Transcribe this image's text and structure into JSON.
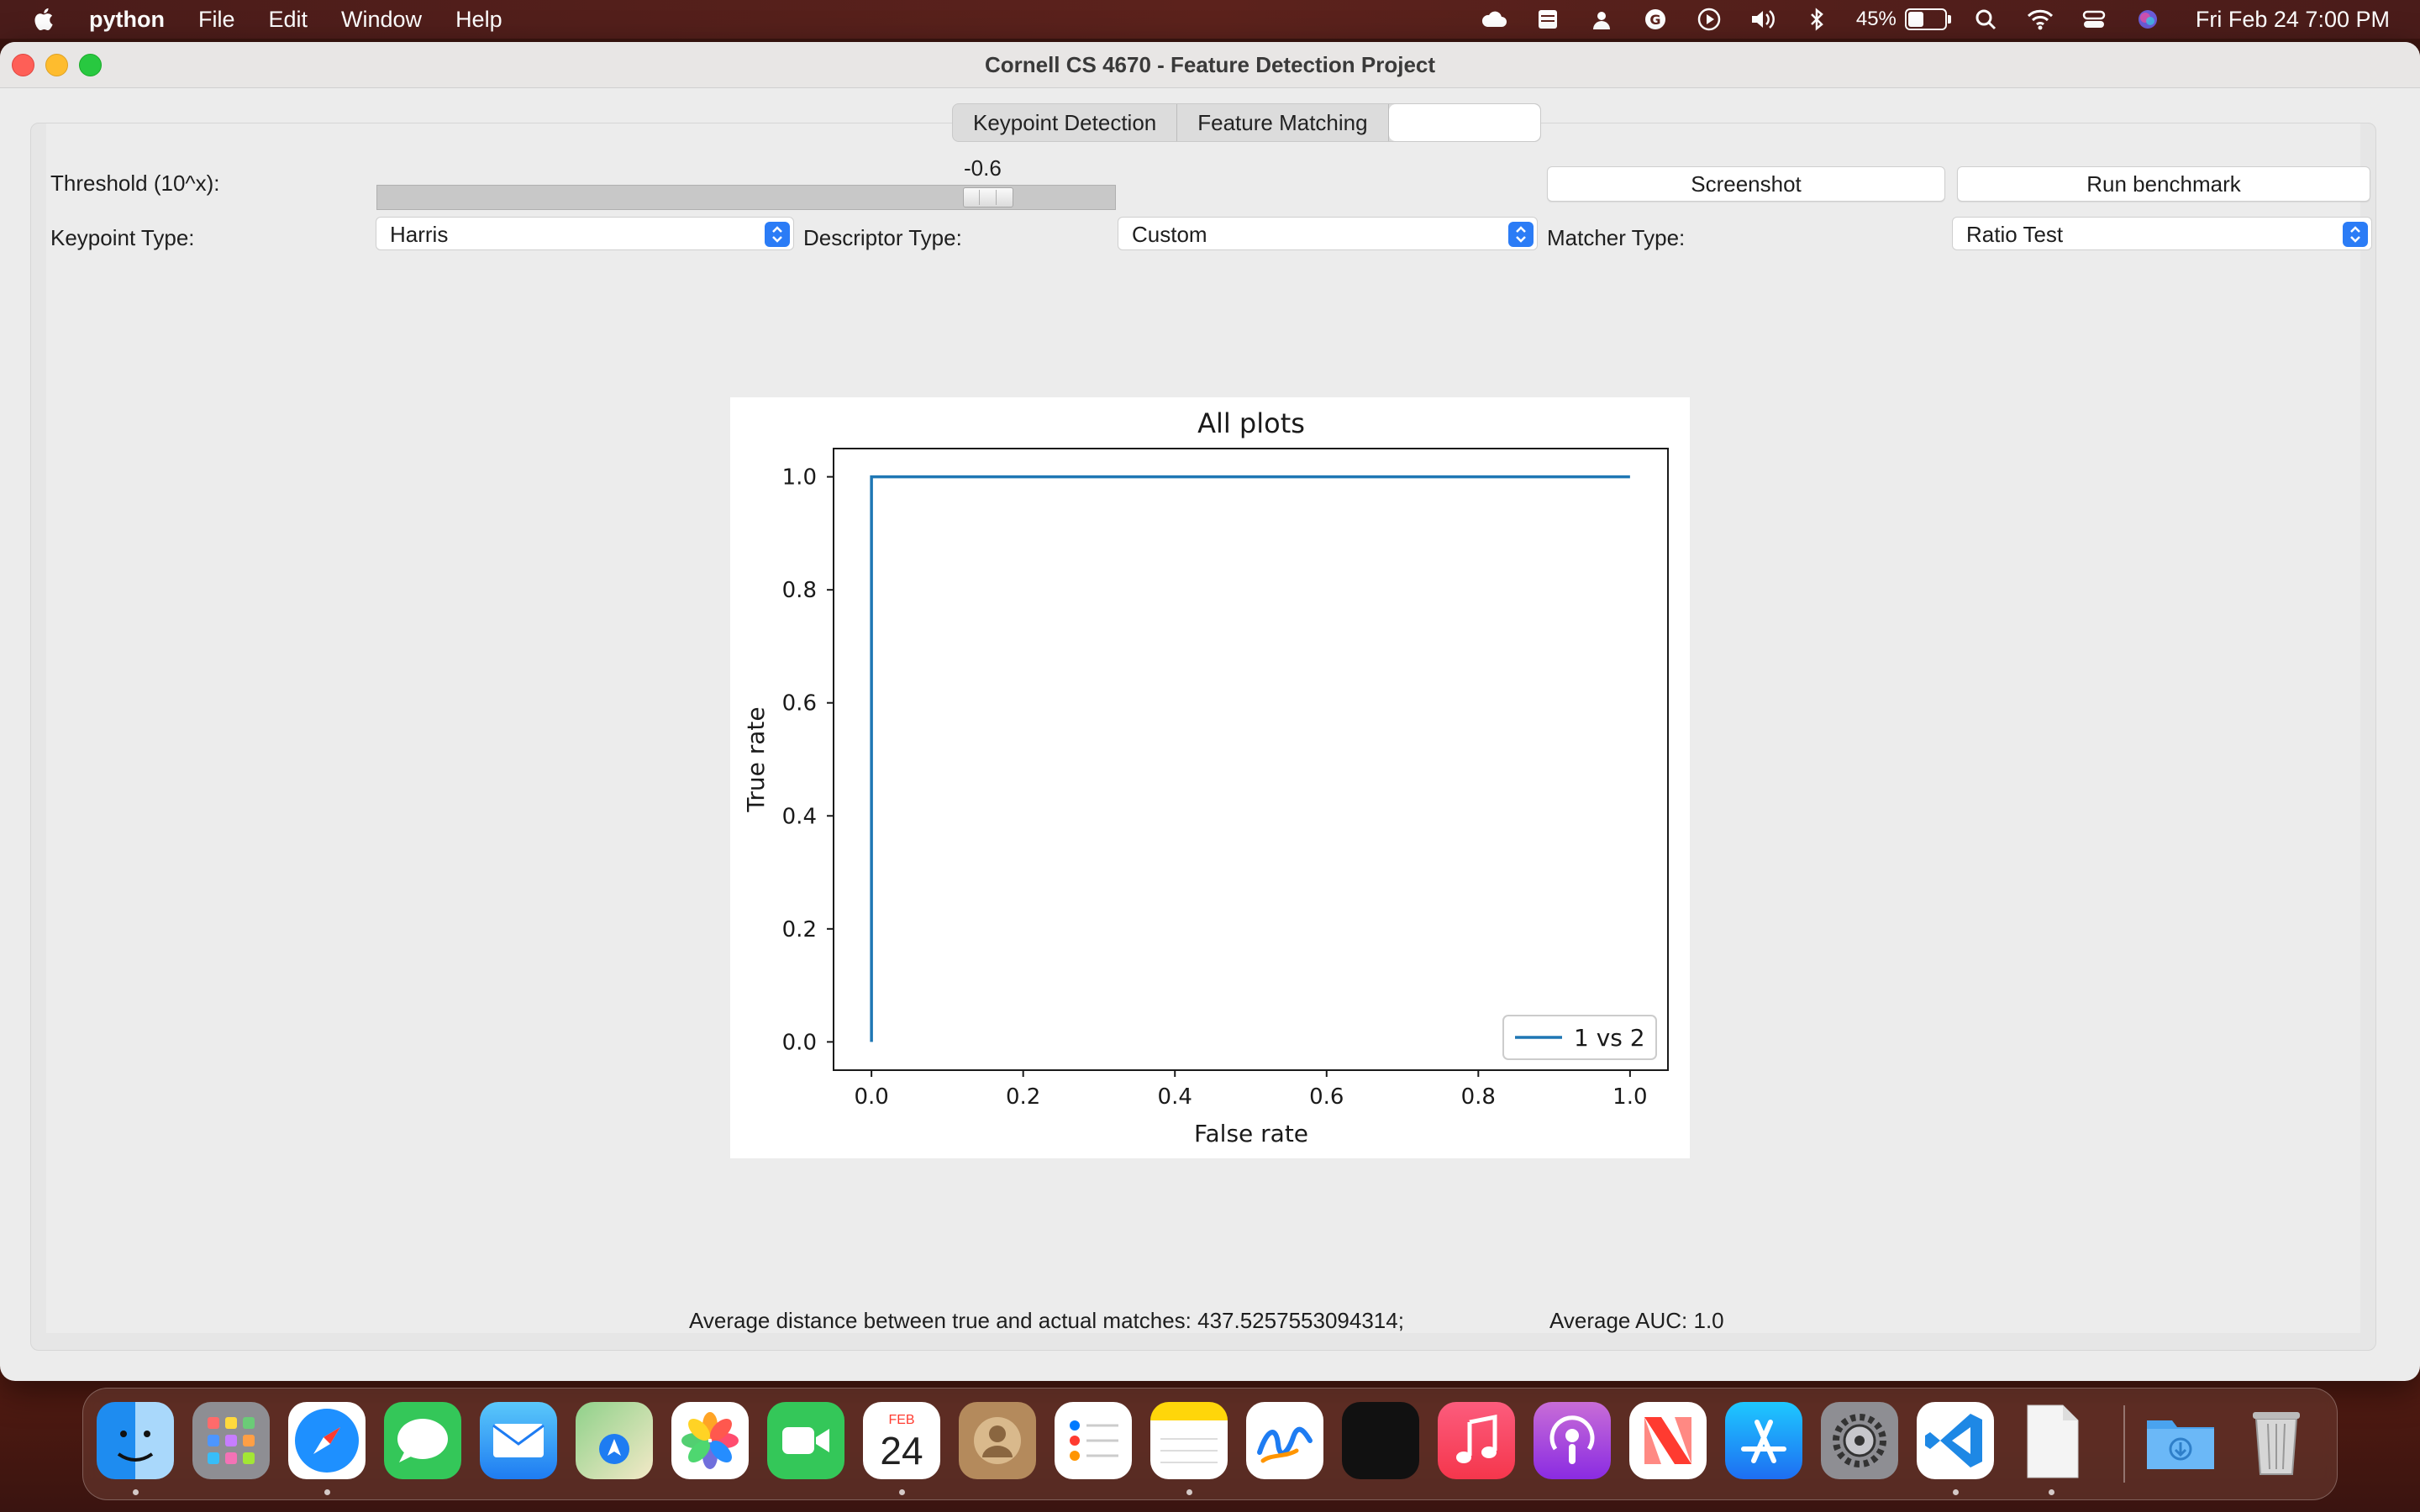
{
  "menubar": {
    "app": "python",
    "items": [
      "File",
      "Edit",
      "Window",
      "Help"
    ],
    "battery": "45%",
    "battery_level": 0.45,
    "clock": "Fri Feb 24  7:00 PM"
  },
  "window": {
    "title": "Cornell CS 4670 - Feature Detection Project"
  },
  "tabs": [
    {
      "label": "Keypoint Detection"
    },
    {
      "label": "Feature Matching"
    },
    {
      "label": ""
    }
  ],
  "controls": {
    "threshold_label": "Threshold (10^x):",
    "threshold_value": "-0.6",
    "keypoint_label": "Keypoint Type:",
    "keypoint_value": "Harris",
    "descriptor_label": "Descriptor Type:",
    "descriptor_value": "Custom",
    "matcher_label": "Matcher Type:",
    "matcher_value": "Ratio Test",
    "screenshot_label": "Screenshot",
    "benchmark_label": "Run benchmark"
  },
  "chart_data": {
    "type": "line",
    "title": "All plots",
    "xlabel": "False rate",
    "ylabel": "True rate",
    "xlim": [
      -0.05,
      1.05
    ],
    "ylim": [
      -0.05,
      1.05
    ],
    "xticks": [
      "0.0",
      "0.2",
      "0.4",
      "0.6",
      "0.8",
      "1.0"
    ],
    "yticks": [
      "0.0",
      "0.2",
      "0.4",
      "0.6",
      "0.8",
      "1.0"
    ],
    "legend": "bottom-right",
    "grid": false,
    "series": [
      {
        "name": "1 vs 2",
        "color": "#1f77b4",
        "x": [
          0.0,
          0.0,
          1.0
        ],
        "y": [
          0.0,
          1.0,
          1.0
        ]
      }
    ]
  },
  "status": {
    "distance_text": "Average distance between true and actual matches: 437.5257553094314;",
    "auc_text": "Average AUC: 1.0"
  },
  "dock": {
    "calendar_month": "FEB",
    "calendar_day": "24",
    "apps": [
      "finder-icon",
      "launchpad-icon",
      "safari-icon",
      "messages-icon",
      "mail-icon",
      "maps-icon",
      "photos-icon",
      "facetime-icon",
      "calendar-icon",
      "contacts-icon",
      "reminders-icon",
      "notes-icon",
      "freeform-icon",
      "appletv-icon",
      "music-icon",
      "podcasts-icon",
      "news-icon",
      "appstore-icon",
      "system-settings-icon",
      "vscode-icon",
      "document-icon",
      "downloads-folder-icon",
      "trash-icon"
    ]
  }
}
